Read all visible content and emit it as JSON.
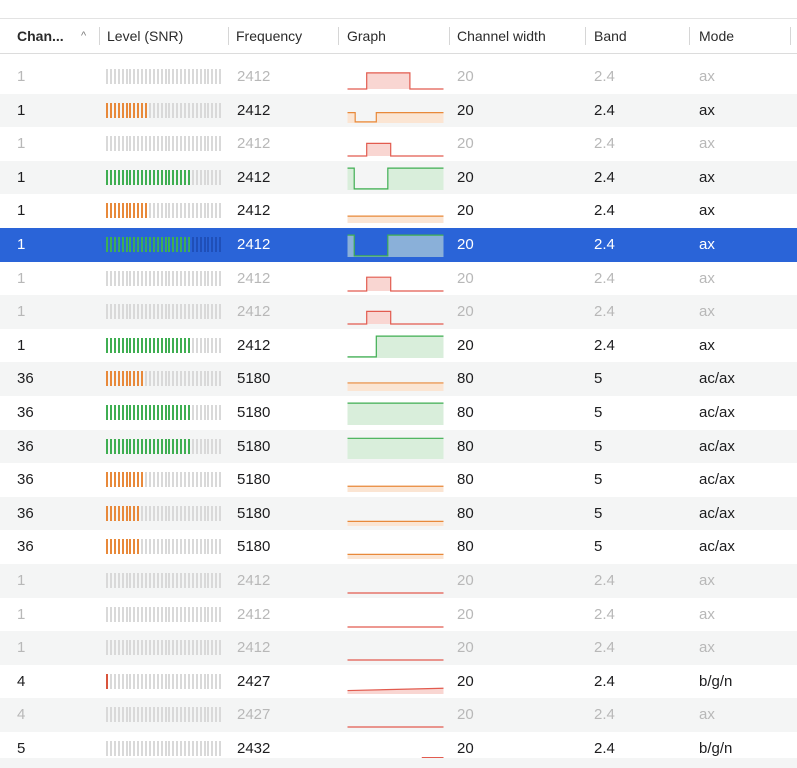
{
  "colors": {
    "inactive_bar": "#d9d9d9",
    "selected_inactive_bar": "#1f4fb8",
    "orange_bar": "#e8893a",
    "green_bar": "#3fae52",
    "red_bar": "#d9543c",
    "orange_line": "#e8893a",
    "orange_fill": "#fbe5d3",
    "green_line": "#3fae52",
    "green_fill": "#d9eedb",
    "red_line": "#e25b4f",
    "red_fill": "#f9d6d2"
  },
  "header": {
    "channel": "Chan...",
    "level": "Level (SNR)",
    "frequency": "Frequency",
    "graph": "Graph",
    "width": "Channel width",
    "band": "Band",
    "mode": "Mode",
    "sort_arrow": "^"
  },
  "rows": [
    {
      "channel": "1",
      "level_fill": 0,
      "level_color": "orange",
      "frequency": "2412",
      "graph": {
        "color": "red",
        "points": [
          [
            0,
            1
          ],
          [
            0.2,
            1
          ],
          [
            0.2,
            0.3
          ],
          [
            0.65,
            0.3
          ],
          [
            0.65,
            1
          ],
          [
            1,
            1
          ]
        ]
      },
      "width": "20",
      "band": "2.4",
      "mode": "ax",
      "inactive": true,
      "selected": false
    },
    {
      "channel": "1",
      "level_fill": 0.35,
      "level_color": "orange",
      "frequency": "2412",
      "graph": {
        "color": "orange",
        "points": [
          [
            0,
            0.55
          ],
          [
            0.08,
            0.55
          ],
          [
            0.08,
            0.95
          ],
          [
            0.3,
            0.95
          ],
          [
            0.3,
            0.55
          ],
          [
            1,
            0.55
          ]
        ]
      },
      "width": "20",
      "band": "2.4",
      "mode": "ax",
      "inactive": false,
      "selected": false
    },
    {
      "channel": "1",
      "level_fill": 0,
      "level_color": "orange",
      "frequency": "2412",
      "graph": {
        "color": "red",
        "points": [
          [
            0,
            1
          ],
          [
            0.2,
            1
          ],
          [
            0.2,
            0.45
          ],
          [
            0.45,
            0.45
          ],
          [
            0.45,
            1
          ],
          [
            1,
            1
          ]
        ]
      },
      "width": "20",
      "band": "2.4",
      "mode": "ax",
      "inactive": true,
      "selected": false
    },
    {
      "channel": "1",
      "level_fill": 0.72,
      "level_color": "green",
      "frequency": "2412",
      "graph": {
        "color": "green",
        "points": [
          [
            0,
            0.05
          ],
          [
            0.07,
            0.05
          ],
          [
            0.07,
            0.95
          ],
          [
            0.42,
            0.95
          ],
          [
            0.42,
            0.05
          ],
          [
            1,
            0.05
          ]
        ]
      },
      "width": "20",
      "band": "2.4",
      "mode": "ax",
      "inactive": false,
      "selected": false
    },
    {
      "channel": "1",
      "level_fill": 0.35,
      "level_color": "orange",
      "frequency": "2412",
      "graph": {
        "color": "orange",
        "points": [
          [
            0,
            0.7
          ],
          [
            1,
            0.7
          ]
        ]
      },
      "width": "20",
      "band": "2.4",
      "mode": "ax",
      "inactive": false,
      "selected": false
    },
    {
      "channel": "1",
      "level_fill": 0.72,
      "level_color": "green",
      "frequency": "2412",
      "graph": {
        "color": "green",
        "points": [
          [
            0,
            0.05
          ],
          [
            0.07,
            0.05
          ],
          [
            0.07,
            0.95
          ],
          [
            0.42,
            0.95
          ],
          [
            0.42,
            0.05
          ],
          [
            1,
            0.05
          ]
        ]
      },
      "width": "20",
      "band": "2.4",
      "mode": "ax",
      "inactive": false,
      "selected": true
    },
    {
      "channel": "1",
      "level_fill": 0,
      "level_color": "orange",
      "frequency": "2412",
      "graph": {
        "color": "red",
        "points": [
          [
            0,
            1
          ],
          [
            0.2,
            1
          ],
          [
            0.2,
            0.4
          ],
          [
            0.45,
            0.4
          ],
          [
            0.45,
            1
          ],
          [
            1,
            1
          ]
        ]
      },
      "width": "20",
      "band": "2.4",
      "mode": "ax",
      "inactive": true,
      "selected": false
    },
    {
      "channel": "1",
      "level_fill": 0,
      "level_color": "orange",
      "frequency": "2412",
      "graph": {
        "color": "red",
        "points": [
          [
            0,
            1
          ],
          [
            0.2,
            1
          ],
          [
            0.2,
            0.45
          ],
          [
            0.45,
            0.45
          ],
          [
            0.45,
            1
          ],
          [
            1,
            1
          ]
        ]
      },
      "width": "20",
      "band": "2.4",
      "mode": "ax",
      "inactive": true,
      "selected": false
    },
    {
      "channel": "1",
      "level_fill": 0.72,
      "level_color": "green",
      "frequency": "2412",
      "graph": {
        "color": "green",
        "points": [
          [
            0,
            0.95
          ],
          [
            0.3,
            0.95
          ],
          [
            0.3,
            0.05
          ],
          [
            1,
            0.05
          ]
        ]
      },
      "width": "20",
      "band": "2.4",
      "mode": "ax",
      "inactive": false,
      "selected": false
    },
    {
      "channel": "36",
      "level_fill": 0.32,
      "level_color": "orange",
      "frequency": "5180",
      "graph": {
        "color": "orange",
        "points": [
          [
            0,
            0.65
          ],
          [
            1,
            0.65
          ]
        ]
      },
      "width": "80",
      "band": "5",
      "mode": "ac/ax",
      "inactive": false,
      "selected": false
    },
    {
      "channel": "36",
      "level_fill": 0.72,
      "level_color": "green",
      "frequency": "5180",
      "graph": {
        "color": "green",
        "points": [
          [
            0,
            0.05
          ],
          [
            1,
            0.05
          ]
        ]
      },
      "width": "80",
      "band": "5",
      "mode": "ac/ax",
      "inactive": false,
      "selected": false
    },
    {
      "channel": "36",
      "level_fill": 0.72,
      "level_color": "green",
      "frequency": "5180",
      "graph": {
        "color": "green",
        "points": [
          [
            0,
            0.1
          ],
          [
            1,
            0.1
          ]
        ]
      },
      "width": "80",
      "band": "5",
      "mode": "ac/ax",
      "inactive": false,
      "selected": false
    },
    {
      "channel": "36",
      "level_fill": 0.32,
      "level_color": "orange",
      "frequency": "5180",
      "graph": {
        "color": "orange",
        "points": [
          [
            0,
            0.75
          ],
          [
            1,
            0.75
          ]
        ]
      },
      "width": "80",
      "band": "5",
      "mode": "ac/ax",
      "inactive": false,
      "selected": false
    },
    {
      "channel": "36",
      "level_fill": 0.3,
      "level_color": "orange",
      "frequency": "5180",
      "graph": {
        "color": "orange",
        "points": [
          [
            0,
            0.8
          ],
          [
            1,
            0.8
          ]
        ]
      },
      "width": "80",
      "band": "5",
      "mode": "ac/ax",
      "inactive": false,
      "selected": false
    },
    {
      "channel": "36",
      "level_fill": 0.3,
      "level_color": "orange",
      "frequency": "5180",
      "graph": {
        "color": "orange",
        "points": [
          [
            0,
            0.8
          ],
          [
            1,
            0.8
          ]
        ]
      },
      "width": "80",
      "band": "5",
      "mode": "ac/ax",
      "inactive": false,
      "selected": false
    },
    {
      "channel": "1",
      "level_fill": 0,
      "level_color": "orange",
      "frequency": "2412",
      "graph": {
        "color": "red",
        "points": [
          [
            0,
            1
          ],
          [
            1,
            1
          ]
        ]
      },
      "width": "20",
      "band": "2.4",
      "mode": "ax",
      "inactive": true,
      "selected": false
    },
    {
      "channel": "1",
      "level_fill": 0,
      "level_color": "orange",
      "frequency": "2412",
      "graph": {
        "color": "red",
        "points": [
          [
            0,
            1
          ],
          [
            1,
            1
          ]
        ]
      },
      "width": "20",
      "band": "2.4",
      "mode": "ax",
      "inactive": true,
      "selected": false
    },
    {
      "channel": "1",
      "level_fill": 0,
      "level_color": "orange",
      "frequency": "2412",
      "graph": {
        "color": "red",
        "points": [
          [
            0,
            1
          ],
          [
            1,
            1
          ]
        ]
      },
      "width": "20",
      "band": "2.4",
      "mode": "ax",
      "inactive": true,
      "selected": false
    },
    {
      "channel": "4",
      "level_fill": 0.04,
      "level_color": "red",
      "frequency": "2427",
      "graph": {
        "color": "red",
        "points": [
          [
            0,
            0.85
          ],
          [
            1,
            0.75
          ]
        ]
      },
      "width": "20",
      "band": "2.4",
      "mode": "b/g/n",
      "inactive": false,
      "selected": false
    },
    {
      "channel": "4",
      "level_fill": 0,
      "level_color": "orange",
      "frequency": "2427",
      "graph": {
        "color": "red",
        "points": [
          [
            0,
            1
          ],
          [
            1,
            1
          ]
        ]
      },
      "width": "20",
      "band": "2.4",
      "mode": "ax",
      "inactive": true,
      "selected": false
    },
    {
      "channel": "5",
      "level_fill": 0,
      "level_color": "orange",
      "frequency": "2432",
      "graph": {
        "color": "red",
        "points": [
          [
            0,
            1
          ],
          [
            0.78,
            1
          ],
          [
            0.78,
            0.85
          ],
          [
            1,
            0.85
          ]
        ]
      },
      "width": "20",
      "band": "2.4",
      "mode": "b/g/n",
      "inactive": false,
      "selected": false
    }
  ]
}
